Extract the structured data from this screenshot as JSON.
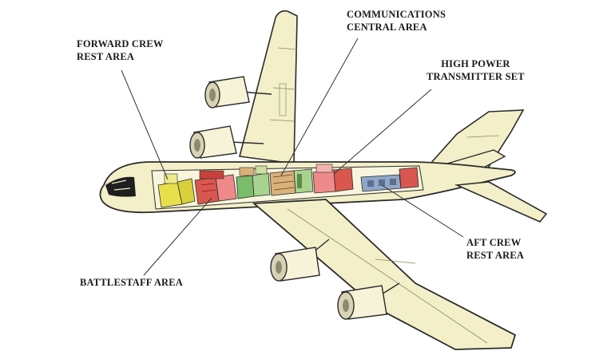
{
  "labels": {
    "forward_crew_rest": [
      "FORWARD CREW",
      "REST AREA"
    ],
    "communications_central": [
      "COMMUNICATIONS",
      "CENTRAL AREA"
    ],
    "high_power_transmitter": [
      "HIGH POWER",
      "TRANSMITTER SET"
    ],
    "aft_crew_rest": [
      "AFT CREW",
      "REST AREA"
    ],
    "battlestaff": [
      "BATTLESTAFF AREA"
    ]
  },
  "colors": {
    "airframe": "#f3efc9",
    "outline": "#2b2b2b",
    "engine": "#f6f3d8",
    "cockpit": "#1e1e1e",
    "compartment_yellow": "#e8e04a",
    "compartment_red": "#d9574f",
    "compartment_pink": "#ef8a8a",
    "compartment_green": "#7bbd6a",
    "compartment_blue": "#8fa7c9",
    "compartment_tan": "#d9b27a",
    "leader_line": "#333333"
  }
}
